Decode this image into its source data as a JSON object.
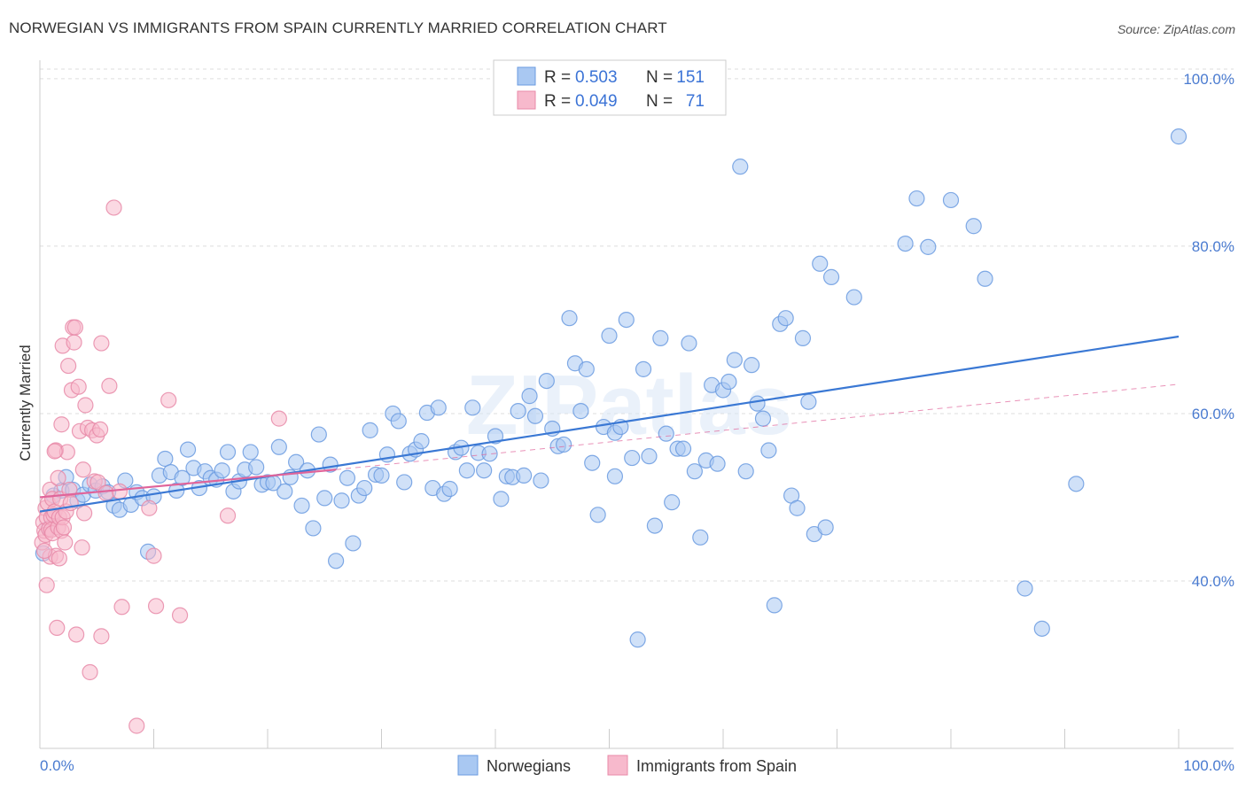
{
  "title": "NORWEGIAN VS IMMIGRANTS FROM SPAIN CURRENTLY MARRIED CORRELATION CHART",
  "source": "Source: ZipAtlas.com",
  "watermark": "ZIPatlas",
  "legend_box": {
    "rows": [
      {
        "r_label": "R =",
        "r_value": "0.503",
        "n_label": "N =",
        "n_value": "151",
        "color": "#a9c8f2",
        "stroke": "#6b9be0"
      },
      {
        "r_label": "R =",
        "r_value": "0.049",
        "n_label": "N =",
        "n_value": "71",
        "color": "#f7b9cc",
        "stroke": "#e88aa8"
      }
    ]
  },
  "bottom_legend": [
    {
      "label": "Norwegians",
      "color": "#a9c8f2",
      "stroke": "#6b9be0"
    },
    {
      "label": "Immigrants from Spain",
      "color": "#f7b9cc",
      "stroke": "#e88aa8"
    }
  ],
  "chart_data": {
    "type": "scatter",
    "title": "NORWEGIAN VS IMMIGRANTS FROM SPAIN CURRENTLY MARRIED CORRELATION CHART",
    "xlabel": "",
    "ylabel": "Currently Married",
    "xlim": [
      0,
      100
    ],
    "ylim": [
      20,
      102
    ],
    "x_tick_labels": [
      "0.0%",
      "100.0%"
    ],
    "y_ticks": [
      40,
      60,
      80,
      100
    ],
    "y_tick_labels": [
      "40.0%",
      "60.0%",
      "80.0%",
      "100.0%"
    ],
    "grid": true,
    "legend_placement": "top-center",
    "colors": {
      "norwegians": "#3a78d4",
      "spain": "#e0649a"
    },
    "series": [
      {
        "name": "Norwegians",
        "trend": {
          "x": [
            0,
            100
          ],
          "y": [
            48.3,
            69.2
          ]
        },
        "points": [
          [
            0.3,
            43.3
          ],
          [
            0.8,
            46.3
          ],
          [
            1.2,
            50.2
          ],
          [
            1.9,
            50.8
          ],
          [
            2.3,
            52.4
          ],
          [
            2.9,
            50.9
          ],
          [
            3.3,
            49.6
          ],
          [
            3.8,
            50.3
          ],
          [
            4.4,
            51.5
          ],
          [
            4.9,
            50.8
          ],
          [
            5.5,
            51.3
          ],
          [
            6.0,
            50.6
          ],
          [
            6.5,
            49.0
          ],
          [
            7.0,
            48.5
          ],
          [
            7.5,
            52.0
          ],
          [
            8.0,
            49.1
          ],
          [
            8.5,
            50.6
          ],
          [
            9.0,
            49.9
          ],
          [
            9.5,
            43.5
          ],
          [
            10.0,
            50.1
          ],
          [
            10.5,
            52.6
          ],
          [
            11.0,
            54.6
          ],
          [
            11.5,
            53.0
          ],
          [
            12.0,
            50.8
          ],
          [
            12.5,
            52.3
          ],
          [
            13.0,
            55.7
          ],
          [
            13.5,
            53.5
          ],
          [
            14.0,
            51.1
          ],
          [
            14.5,
            53.1
          ],
          [
            15.0,
            52.3
          ],
          [
            15.5,
            52.1
          ],
          [
            16.0,
            53.2
          ],
          [
            16.5,
            55.4
          ],
          [
            17.0,
            50.7
          ],
          [
            17.5,
            51.9
          ],
          [
            18.0,
            53.3
          ],
          [
            18.5,
            55.4
          ],
          [
            19.0,
            53.6
          ],
          [
            19.5,
            51.5
          ],
          [
            20.0,
            51.8
          ],
          [
            20.5,
            51.7
          ],
          [
            21.0,
            56.0
          ],
          [
            21.5,
            50.7
          ],
          [
            22.0,
            52.4
          ],
          [
            22.5,
            54.2
          ],
          [
            23.0,
            49.0
          ],
          [
            23.5,
            53.2
          ],
          [
            24.0,
            46.3
          ],
          [
            24.5,
            57.5
          ],
          [
            25.0,
            49.9
          ],
          [
            25.5,
            53.9
          ],
          [
            26.0,
            42.4
          ],
          [
            26.5,
            49.6
          ],
          [
            27.0,
            52.3
          ],
          [
            27.5,
            44.5
          ],
          [
            28.0,
            50.2
          ],
          [
            28.5,
            51.1
          ],
          [
            29.0,
            58.0
          ],
          [
            29.5,
            52.7
          ],
          [
            30.0,
            52.6
          ],
          [
            30.5,
            55.1
          ],
          [
            31.0,
            60.0
          ],
          [
            31.5,
            59.1
          ],
          [
            32.0,
            51.8
          ],
          [
            32.5,
            55.2
          ],
          [
            33.0,
            55.7
          ],
          [
            33.5,
            56.7
          ],
          [
            34.0,
            60.1
          ],
          [
            34.5,
            51.1
          ],
          [
            35.0,
            60.7
          ],
          [
            35.5,
            50.4
          ],
          [
            36.0,
            51.0
          ],
          [
            36.5,
            55.4
          ],
          [
            37.0,
            55.9
          ],
          [
            37.5,
            53.2
          ],
          [
            38.0,
            60.7
          ],
          [
            38.5,
            55.3
          ],
          [
            39.0,
            53.2
          ],
          [
            39.5,
            55.2
          ],
          [
            40.0,
            57.3
          ],
          [
            40.5,
            49.8
          ],
          [
            41.0,
            52.5
          ],
          [
            41.5,
            52.4
          ],
          [
            42.0,
            60.3
          ],
          [
            42.5,
            52.6
          ],
          [
            43.0,
            62.1
          ],
          [
            43.5,
            59.7
          ],
          [
            44.0,
            52.0
          ],
          [
            44.5,
            63.9
          ],
          [
            45.0,
            58.2
          ],
          [
            45.5,
            56.1
          ],
          [
            46.0,
            56.3
          ],
          [
            46.5,
            71.4
          ],
          [
            47.0,
            66.0
          ],
          [
            47.5,
            60.3
          ],
          [
            48.0,
            65.3
          ],
          [
            48.5,
            54.1
          ],
          [
            49.0,
            47.9
          ],
          [
            49.5,
            58.4
          ],
          [
            50.0,
            69.3
          ],
          [
            50.5,
            57.7
          ],
          [
            51.0,
            58.4
          ],
          [
            51.5,
            71.2
          ],
          [
            52.0,
            54.7
          ],
          [
            52.5,
            33.0
          ],
          [
            53.0,
            65.3
          ],
          [
            53.5,
            54.9
          ],
          [
            54.0,
            46.6
          ],
          [
            54.5,
            69.0
          ],
          [
            55.0,
            57.6
          ],
          [
            55.5,
            49.4
          ],
          [
            56.0,
            55.8
          ],
          [
            56.5,
            55.8
          ],
          [
            57.0,
            68.4
          ],
          [
            57.5,
            53.1
          ],
          [
            58.0,
            45.2
          ],
          [
            58.5,
            54.4
          ],
          [
            59.0,
            63.4
          ],
          [
            59.5,
            54.0
          ],
          [
            60.0,
            62.8
          ],
          [
            60.5,
            63.8
          ],
          [
            61.0,
            66.4
          ],
          [
            61.5,
            89.5
          ],
          [
            62.0,
            53.1
          ],
          [
            62.5,
            65.8
          ],
          [
            63.0,
            61.2
          ],
          [
            63.5,
            59.4
          ],
          [
            64.0,
            55.6
          ],
          [
            64.5,
            37.1
          ],
          [
            65.0,
            70.7
          ],
          [
            65.5,
            71.4
          ],
          [
            66.0,
            50.2
          ],
          [
            66.5,
            48.7
          ],
          [
            67.0,
            69.0
          ],
          [
            67.5,
            61.4
          ],
          [
            68.0,
            45.6
          ],
          [
            68.5,
            77.9
          ],
          [
            69.0,
            46.4
          ],
          [
            69.5,
            76.3
          ],
          [
            71.5,
            73.9
          ],
          [
            76.0,
            80.3
          ],
          [
            77.0,
            85.7
          ],
          [
            78.0,
            79.9
          ],
          [
            80.0,
            85.5
          ],
          [
            82.0,
            82.4
          ],
          [
            83.0,
            76.1
          ],
          [
            86.5,
            39.1
          ],
          [
            88.0,
            34.3
          ],
          [
            91.0,
            51.6
          ],
          [
            100.0,
            93.1
          ],
          [
            50.5,
            52.5
          ]
        ]
      },
      {
        "name": "Immigrants from Spain",
        "trend": {
          "x": [
            0,
            26
          ],
          "y": [
            50.0,
            53.3
          ]
        },
        "points": [
          [
            0.2,
            44.6
          ],
          [
            0.3,
            47.0
          ],
          [
            0.4,
            46.0
          ],
          [
            0.5,
            48.7
          ],
          [
            0.5,
            45.5
          ],
          [
            0.6,
            39.5
          ],
          [
            0.6,
            47.6
          ],
          [
            0.7,
            49.3
          ],
          [
            0.8,
            46.2
          ],
          [
            0.9,
            50.9
          ],
          [
            0.9,
            42.9
          ],
          [
            1.0,
            47.6
          ],
          [
            1.0,
            46.1
          ],
          [
            1.1,
            49.8
          ],
          [
            1.1,
            45.7
          ],
          [
            1.2,
            47.9
          ],
          [
            1.3,
            48.3
          ],
          [
            1.4,
            55.6
          ],
          [
            1.4,
            43.0
          ],
          [
            1.5,
            34.4
          ],
          [
            1.6,
            46.4
          ],
          [
            1.6,
            52.3
          ],
          [
            1.7,
            47.6
          ],
          [
            1.7,
            42.7
          ],
          [
            1.8,
            49.8
          ],
          [
            1.9,
            58.7
          ],
          [
            1.9,
            46.0
          ],
          [
            2.0,
            68.1
          ],
          [
            2.0,
            47.6
          ],
          [
            2.1,
            46.4
          ],
          [
            2.2,
            44.6
          ],
          [
            2.3,
            48.3
          ],
          [
            2.4,
            55.4
          ],
          [
            2.5,
            65.7
          ],
          [
            2.6,
            50.9
          ],
          [
            2.7,
            49.3
          ],
          [
            2.8,
            62.8
          ],
          [
            2.9,
            70.3
          ],
          [
            3.0,
            68.5
          ],
          [
            3.1,
            70.3
          ],
          [
            3.2,
            33.6
          ],
          [
            3.4,
            63.2
          ],
          [
            3.5,
            57.9
          ],
          [
            3.7,
            44.0
          ],
          [
            3.8,
            53.3
          ],
          [
            3.9,
            48.1
          ],
          [
            4.0,
            61.0
          ],
          [
            4.2,
            58.3
          ],
          [
            4.4,
            29.1
          ],
          [
            4.6,
            58.0
          ],
          [
            4.8,
            51.9
          ],
          [
            5.0,
            57.4
          ],
          [
            5.1,
            51.8
          ],
          [
            5.3,
            58.1
          ],
          [
            5.4,
            68.4
          ],
          [
            5.4,
            33.4
          ],
          [
            5.8,
            50.5
          ],
          [
            6.1,
            63.3
          ],
          [
            6.5,
            84.6
          ],
          [
            7.0,
            50.7
          ],
          [
            7.2,
            36.9
          ],
          [
            8.5,
            22.7
          ],
          [
            9.6,
            48.7
          ],
          [
            10.0,
            43.0
          ],
          [
            10.2,
            37.0
          ],
          [
            11.3,
            61.6
          ],
          [
            12.3,
            35.9
          ],
          [
            16.5,
            47.8
          ],
          [
            21.0,
            59.4
          ],
          [
            1.3,
            55.5
          ],
          [
            0.4,
            43.6
          ]
        ]
      }
    ]
  }
}
